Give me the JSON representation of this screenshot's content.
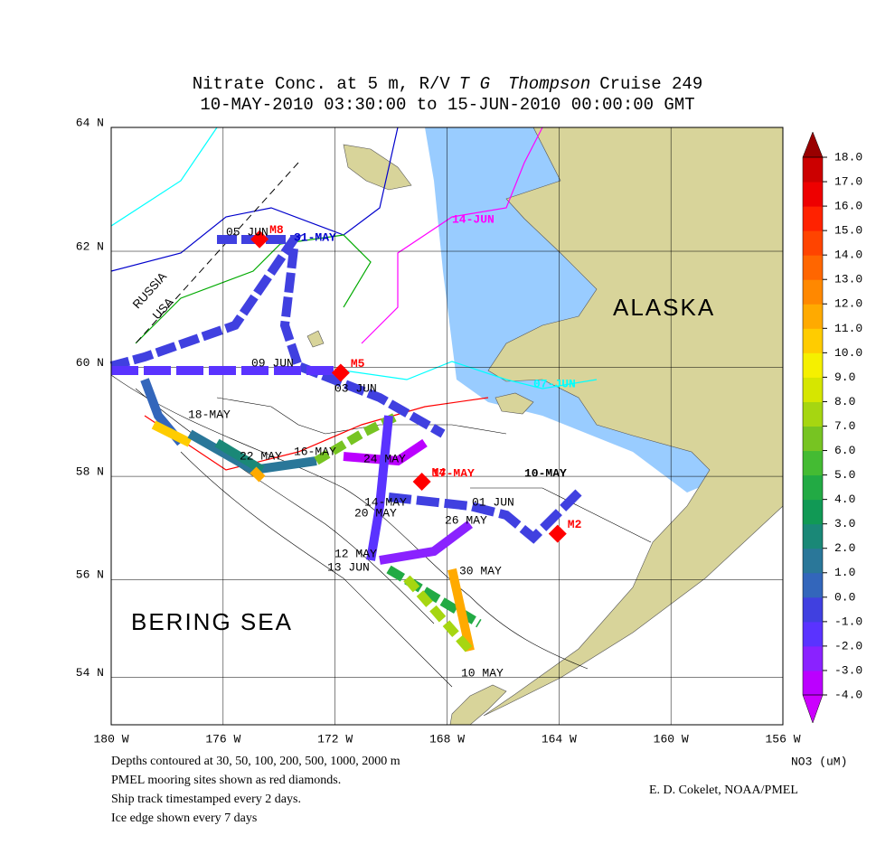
{
  "header": {
    "title_parts": [
      "Nitrate Conc. at 5 m, R/V",
      "T G",
      "Thompson",
      "Cruise 249"
    ],
    "subtitle": "10-MAY-2010 03:30:00 to 15-JUN-2010 00:00:00 GMT"
  },
  "map": {
    "xlim": [
      -180,
      -156
    ],
    "ylim": [
      53,
      64
    ],
    "projection": "mercator",
    "grid": true,
    "xticks": [
      {
        "value": -180,
        "label": "180 W"
      },
      {
        "value": -176,
        "label": "176 W"
      },
      {
        "value": -172,
        "label": "172 W"
      },
      {
        "value": -168,
        "label": "168 W"
      },
      {
        "value": -164,
        "label": "164 W"
      },
      {
        "value": -160,
        "label": "160 W"
      },
      {
        "value": -156,
        "label": "156 W"
      }
    ],
    "yticks": [
      {
        "value": 54,
        "label": "54 N"
      },
      {
        "value": 56,
        "label": "56 N"
      },
      {
        "value": 58,
        "label": "58 N"
      },
      {
        "value": 60,
        "label": "60 N"
      },
      {
        "value": 62,
        "label": "62 N"
      },
      {
        "value": 64,
        "label": "64 N"
      }
    ]
  },
  "regions": [
    "ALASKA",
    "BERING SEA",
    "RUSSIA",
    "USA"
  ],
  "moorings": {
    "color": "#ff0000",
    "items": [
      {
        "name": "M8",
        "lat": 62.2,
        "lon": -174.7
      },
      {
        "name": "M5",
        "lat": 59.9,
        "lon": -171.8
      },
      {
        "name": "M4",
        "lat": 57.9,
        "lon": -168.9
      },
      {
        "name": "M2",
        "lat": 56.9,
        "lon": -164.05
      }
    ]
  },
  "dates": [
    "05 JUN",
    "31-MAY",
    "14-JUN",
    "09 JUN",
    "03 JUN",
    "07-JUN",
    "18-MAY",
    "22 MAY",
    "16-MAY",
    "24 MAY",
    "17-MAY",
    "10-MAY",
    "14-MAY",
    "20 MAY",
    "01 JUN",
    "26 MAY",
    "12 MAY",
    "13 JUN",
    "30 MAY",
    "10 MAY"
  ],
  "colorbar": {
    "unit": "NO3 (uM)",
    "under_color": "#cc00ff",
    "over_color": "#990000",
    "colors": [
      "#bb00ff",
      "#8a22ff",
      "#5a33ff",
      "#4040e0",
      "#3366bb",
      "#2a7799",
      "#1a8877",
      "#119955",
      "#22aa44",
      "#44bb33",
      "#77c422",
      "#a6d611",
      "#d6e600",
      "#f5f000",
      "#ffcc00",
      "#ffaa00",
      "#ff8800",
      "#ff6600",
      "#ff4400",
      "#ff2200",
      "#ee0000",
      "#cc0000"
    ],
    "ticks": [
      {
        "value": -4,
        "label": "-4.0"
      },
      {
        "value": -3,
        "label": "-3.0"
      },
      {
        "value": -2,
        "label": "-2.0"
      },
      {
        "value": -1,
        "label": "-1.0"
      },
      {
        "value": 0,
        "label": "0.0"
      },
      {
        "value": 1,
        "label": "1.0"
      },
      {
        "value": 2,
        "label": "2.0"
      },
      {
        "value": 3,
        "label": "3.0"
      },
      {
        "value": 4,
        "label": "4.0"
      },
      {
        "value": 5,
        "label": "5.0"
      },
      {
        "value": 6,
        "label": "6.0"
      },
      {
        "value": 7,
        "label": "7.0"
      },
      {
        "value": 8,
        "label": "8.0"
      },
      {
        "value": 9,
        "label": "9.0"
      },
      {
        "value": 10,
        "label": "10.0"
      },
      {
        "value": 11,
        "label": "11.0"
      },
      {
        "value": 12,
        "label": "12.0"
      },
      {
        "value": 13,
        "label": "13.0"
      },
      {
        "value": 14,
        "label": "14.0"
      },
      {
        "value": 15,
        "label": "15.0"
      },
      {
        "value": 16,
        "label": "16.0"
      },
      {
        "value": 17,
        "label": "17.0"
      },
      {
        "value": 18,
        "label": "18.0"
      }
    ]
  },
  "notes": [
    "Depths contoured at 30, 50, 100, 200, 500, 1000, 2000 m",
    "PMEL mooring sites shown as red diamonds.",
    "Ship track timestamped every 2 days.",
    "Ice edge shown every 7 days"
  ],
  "credit": "E. D. Cokelet, NOAA/PMEL"
}
